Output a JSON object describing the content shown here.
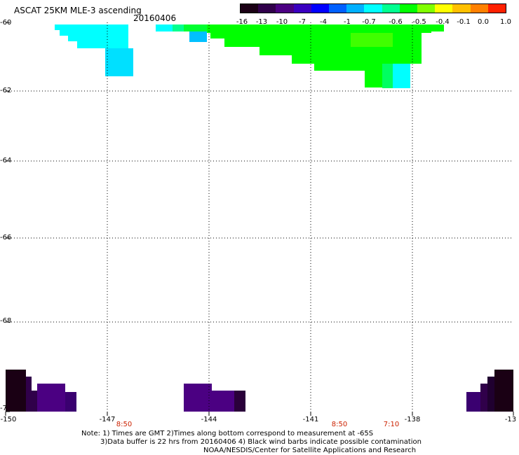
{
  "header": {
    "title": "ASCAT 25KM MLE-3 ascending",
    "date": "20160406"
  },
  "colorbar": {
    "labels": [
      "-16",
      "-13",
      "-10",
      "-7",
      "-4",
      "-1",
      "-0.7",
      "-0.6",
      "-0.5",
      "-0.4",
      "-0.1",
      "0.0",
      "1.0"
    ],
    "colors": [
      "#1a0014",
      "#30004a",
      "#4b0082",
      "#3a00c0",
      "#0000ff",
      "#0060ff",
      "#00b0ff",
      "#00ffff",
      "#00ff90",
      "#00ff00",
      "#80ff00",
      "#ffff00",
      "#ffc000",
      "#ff8000",
      "#ff2000"
    ]
  },
  "map": {
    "lat_labels": [
      "-60",
      "-62",
      "-64",
      "-66",
      "-68",
      "-7"
    ],
    "lon_labels": [
      "-150",
      "-147",
      "-144",
      "-141",
      "-138",
      "-13"
    ],
    "time_labels": [
      "8:50",
      "8:50",
      "7:10"
    ]
  },
  "notes": {
    "line1": "Note: 1) Times are GMT 2)Times along bottom correspond to measurement at -65S",
    "line2": "3)Data buffer is 22 hrs from 20160406 4) Black wind barbs indicate possible contamination",
    "line3": "NOAA/NESDIS/Center for Satellite Applications and Research"
  }
}
